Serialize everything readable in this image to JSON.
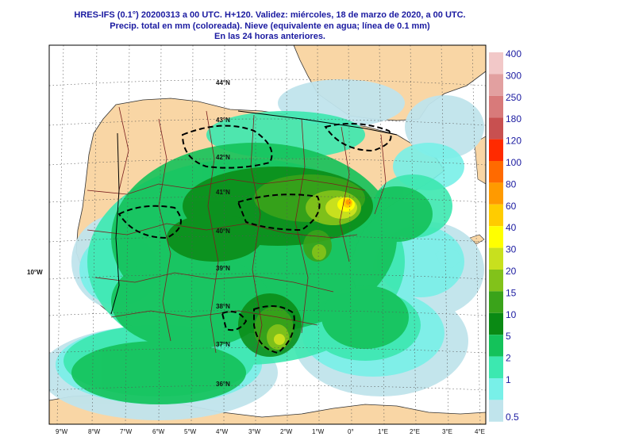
{
  "header": {
    "line1": "HRES-IFS (0.1°) 20200313 a 00 UTC.  H+120. Validez: miércoles, 18 de marzo de 2020,  a  00 UTC.",
    "line2": "Precip. total en mm (coloreada). Nieve (equivalente en agua; línea de 0.1 mm)",
    "line3": "En las 24 horas anteriores."
  },
  "map": {
    "lon_labels": [
      "9°W",
      "8°W",
      "7°W",
      "6°W",
      "5°W",
      "4°W",
      "3°W",
      "2°W",
      "1°W",
      "0°",
      "1°E",
      "2°E",
      "3°E",
      "4°E"
    ],
    "lat_labels": [
      "44°N",
      "43°N",
      "42°N",
      "41°N",
      "40°N",
      "39°N",
      "38°N",
      "37°N",
      "36°N"
    ],
    "side_label": "10°W",
    "colors": {
      "land": "#f9d6a5",
      "sea": "#ffffff",
      "grid": "#555555",
      "borders": "#7a1f1f",
      "snow_line": "#000000"
    }
  },
  "legend": {
    "title": "",
    "items": [
      {
        "label": "400",
        "color": "#f2c8c8"
      },
      {
        "label": "300",
        "color": "#e2a0a0"
      },
      {
        "label": "250",
        "color": "#d87a7a"
      },
      {
        "label": "180",
        "color": "#c85050"
      },
      {
        "label": "120",
        "color": "#ff2a00"
      },
      {
        "label": "100",
        "color": "#ff6a00"
      },
      {
        "label": "80",
        "color": "#ff9a00"
      },
      {
        "label": "60",
        "color": "#ffcc00"
      },
      {
        "label": "40",
        "color": "#ffff00"
      },
      {
        "label": "30",
        "color": "#c8e01e"
      },
      {
        "label": "20",
        "color": "#82c21a"
      },
      {
        "label": "15",
        "color": "#3aa31a"
      },
      {
        "label": "10",
        "color": "#0a8a14"
      },
      {
        "label": "5",
        "color": "#14c25a"
      },
      {
        "label": "2",
        "color": "#3ce8b0"
      },
      {
        "label": "1",
        "color": "#78f0e8"
      },
      {
        "label": "0.5",
        "color": "#c0e4ec"
      }
    ]
  }
}
